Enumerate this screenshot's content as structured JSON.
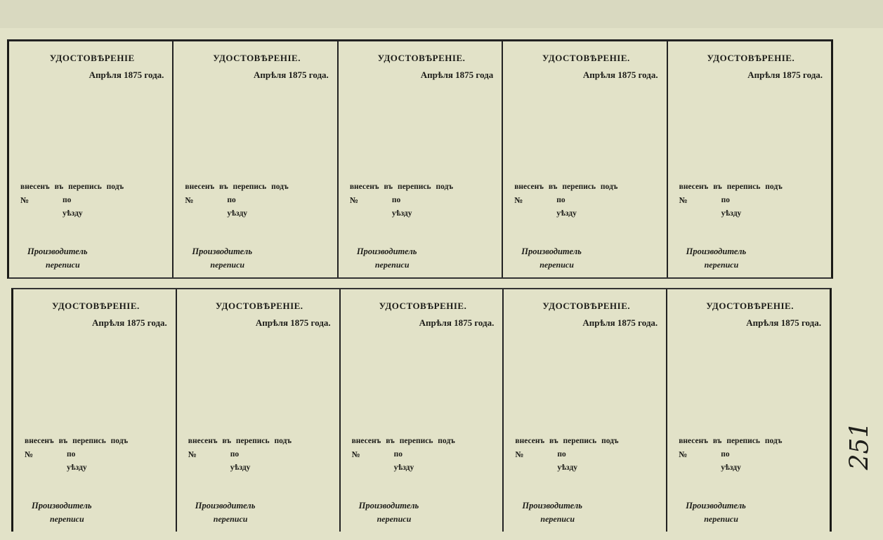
{
  "cells": [
    {
      "title": "УДОСТОВѢРЕНІЕ",
      "date": "Апрѣля 1875 года.",
      "entered": "внесенъ въ перепись подъ",
      "no": "№",
      "po": "по",
      "uezd": "уѣзду",
      "producer": "Производитель",
      "census": "переписи"
    },
    {
      "title": "УДОСТОВѢРЕНІЕ.",
      "date": "Апрѣля 1875 года.",
      "entered": "внесенъ въ перепись подъ",
      "no": "№",
      "po": "по",
      "uezd": "уѣзду",
      "producer": "Производитель",
      "census": "переписи"
    },
    {
      "title": "УДОСТОВѢРЕНІЕ.",
      "date": "Апрѣля 1875 года",
      "entered": "внесенъ въ перепись подъ",
      "no": "№",
      "po": "по",
      "uezd": "уѣзду",
      "producer": "Производитель",
      "census": "переписи"
    },
    {
      "title": "УДОСТОВѢРЕНІЕ.",
      "date": "Апрѣля 1875 года.",
      "entered": "внесенъ въ перепись подъ",
      "no": "№",
      "po": "по",
      "uezd": "уѣзду",
      "producer": "Производитель",
      "census": "переписи"
    },
    {
      "title": "УДОСТОВѢРЕНІЕ.",
      "date": "Апрѣля 1875 года.",
      "entered": "внесенъ въ перепись подъ",
      "no": "№",
      "po": "по",
      "uezd": "уѣзду",
      "producer": "Производитель",
      "census": "переписи"
    },
    {
      "title": "УДОСТОВѢРЕНІЕ.",
      "date": "Апрѣля 1875 года.",
      "entered": "внесенъ въ перепись подъ",
      "no": "№",
      "po": "по",
      "uezd": "уѣзду",
      "producer": "Производитель",
      "census": "переписи"
    },
    {
      "title": "УДОСТОВѢРЕНІЕ.",
      "date": "Апрѣля 1875 года.",
      "entered": "внесенъ въ перепись подъ",
      "no": "№",
      "po": "по",
      "uezd": "уѣзду",
      "producer": "Производитель",
      "census": "переписи"
    },
    {
      "title": "УДОСТОВѢРЕНІЕ.",
      "date": "Апрѣля 1875 года.",
      "entered": "внесенъ въ перепись подъ",
      "no": "№",
      "po": "по",
      "uezd": "уѣзду",
      "producer": "Производитель",
      "census": "переписи"
    },
    {
      "title": "УДОСТОВѢРЕНІЕ.",
      "date": "Апрѣля 1875 года.",
      "entered": "внесенъ въ перепись подъ",
      "no": "№",
      "po": "по",
      "uezd": "уѣзду",
      "producer": "Производитель",
      "census": "переписи"
    },
    {
      "title": "УДОСТОВѢРЕНІЕ.",
      "date": "Апрѣля 1875 года.",
      "entered": "внесенъ въ перепись подъ",
      "no": "№",
      "po": "по",
      "uezd": "уѣзду",
      "producer": "Производитель",
      "census": "переписи"
    }
  ],
  "handwritten_page_number": "251"
}
